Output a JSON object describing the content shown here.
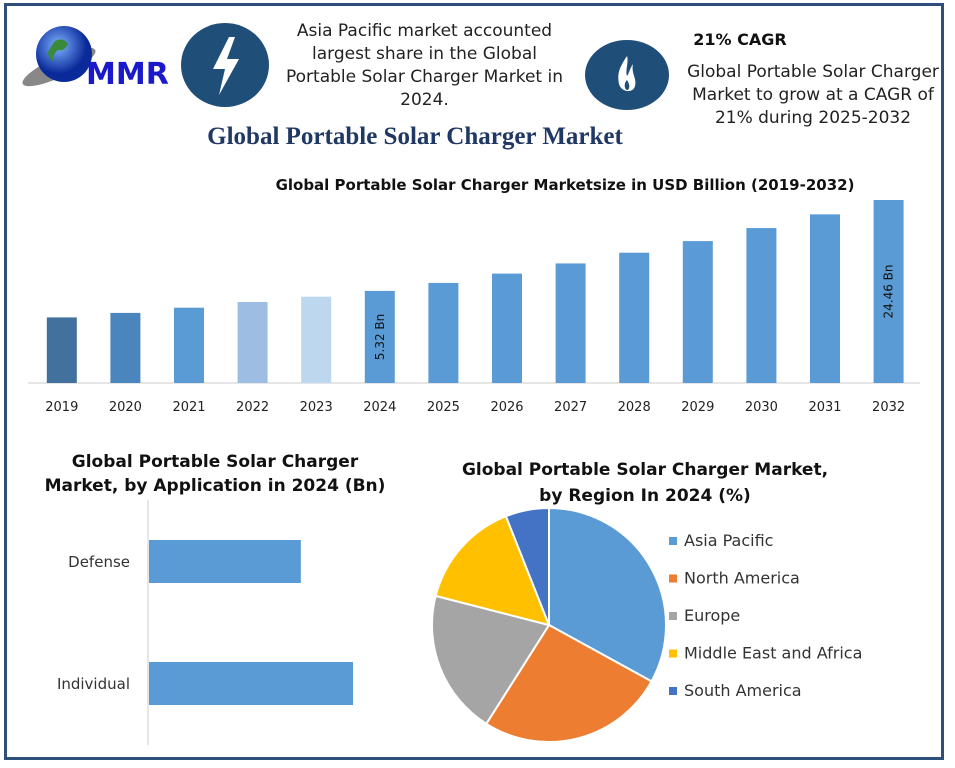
{
  "header": {
    "logo_text": "MMR",
    "icons": [
      "lightning-icon",
      "flame-icon"
    ],
    "blurb_left": "Asia Pacific market accounted largest share in the Global Portable Solar Charger Market in 2024.",
    "cagr_title": "21% CAGR",
    "blurb_right": "Global Portable Solar Charger Market to grow at a CAGR of 21% during 2025-2032",
    "main_title": "Global Portable Solar Charger Market",
    "accent_color": "#1f4e79"
  },
  "chart_data": [
    {
      "type": "bar",
      "title": "Global Portable Solar Charger Marketsize in USD Billion (2019-2032)",
      "categories": [
        "2019",
        "2020",
        "2021",
        "2022",
        "2023",
        "2024",
        "2025",
        "2026",
        "2027",
        "2028",
        "2029",
        "2030",
        "2031",
        "2032"
      ],
      "values": [
        2.5,
        2.9,
        3.4,
        4.0,
        4.6,
        5.32,
        6.4,
        7.8,
        9.5,
        11.5,
        13.9,
        16.9,
        20.4,
        24.46
      ],
      "data_labels": {
        "2024": "5.32 Bn",
        "2032": "24.46 Bn"
      },
      "colors": [
        "#41719c",
        "#4a86bd",
        "#5b9bd5",
        "#9dbde3",
        "#bdd7ee",
        "#5b9bd5",
        "#5b9bd5",
        "#5b9bd5",
        "#5b9bd5",
        "#5b9bd5",
        "#5b9bd5",
        "#5b9bd5",
        "#5b9bd5",
        "#5b9bd5"
      ],
      "grid": false
    },
    {
      "type": "bar",
      "orientation": "horizontal",
      "title": "Global Portable Solar Charger Market, by Application  in 2024 (Bn)",
      "categories": [
        "Defense",
        "Individual"
      ],
      "values": [
        2.27,
        3.05
      ],
      "color": "#5b9bd5",
      "grid": false
    },
    {
      "type": "pie",
      "title": "Global Portable Solar Charger Market, by Region In 2024 (%)",
      "labels": [
        "Asia Pacific",
        "North America",
        "Europe",
        "Middle East and Africa",
        "South America"
      ],
      "values": [
        33,
        26,
        20,
        15,
        6
      ],
      "colors": [
        "#5b9bd5",
        "#ed7d31",
        "#a5a5a5",
        "#ffc000",
        "#4472c4"
      ],
      "legend": "right"
    }
  ]
}
